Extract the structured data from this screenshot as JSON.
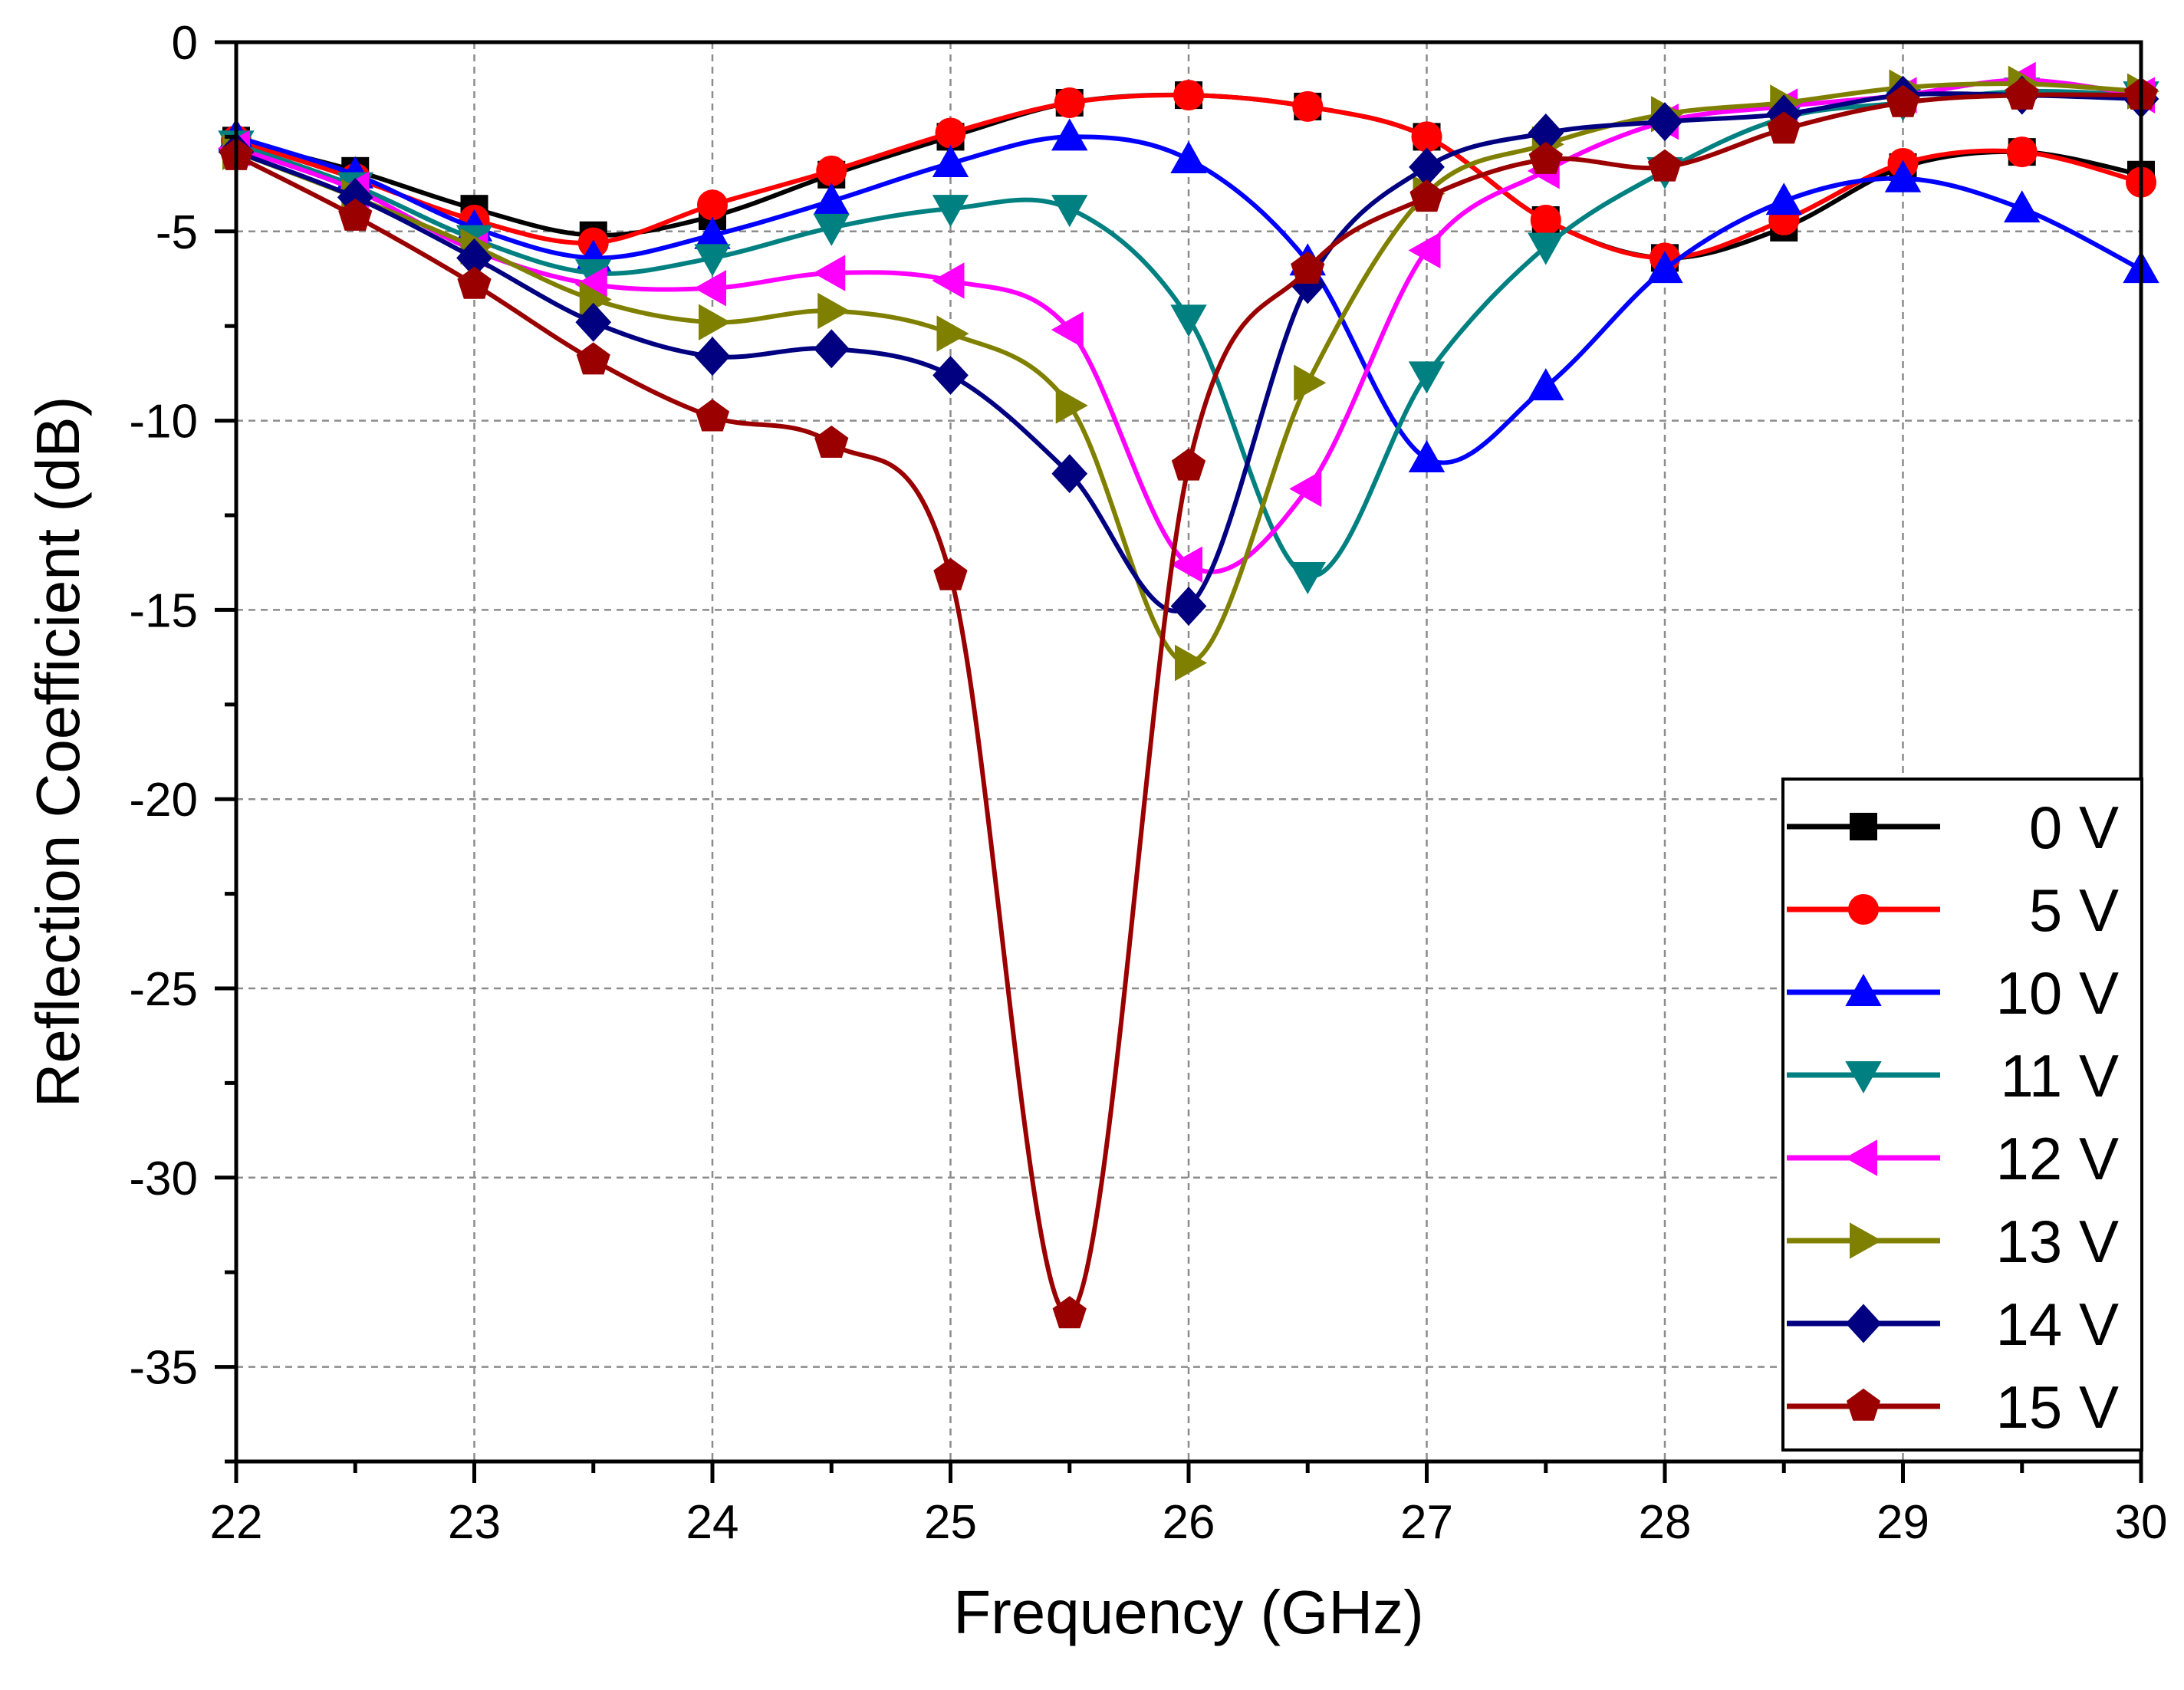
{
  "chart_data": {
    "type": "line",
    "title": "",
    "xlabel": "Frequency (GHz)",
    "ylabel": "Reflection Coefficient (dB)",
    "xlim": [
      22,
      30
    ],
    "ylim": [
      -37.5,
      0
    ],
    "xticks": [
      22,
      23,
      24,
      25,
      26,
      27,
      28,
      29,
      30
    ],
    "yticks": [
      0,
      -5,
      -10,
      -15,
      -20,
      -25,
      -30,
      -35
    ],
    "grid": true,
    "legend_position": "bottom-right",
    "series": [
      {
        "name": "0 V",
        "color": "#000000",
        "marker": "square",
        "x": [
          22,
          22.5,
          23,
          23.5,
          24,
          24.5,
          25,
          25.5,
          26,
          26.5,
          27,
          27.5,
          28,
          28.5,
          29,
          29.5,
          30
        ],
        "y": [
          -2.6,
          -3.4,
          -4.4,
          -5.1,
          -4.6,
          -3.5,
          -2.5,
          -1.6,
          -1.4,
          -1.7,
          -2.5,
          -4.7,
          -5.7,
          -4.9,
          -3.3,
          -2.9,
          -3.5
        ]
      },
      {
        "name": "5 V",
        "color": "#ff0000",
        "marker": "circle",
        "x": [
          22,
          22.5,
          23,
          23.5,
          24,
          24.5,
          25,
          25.5,
          26,
          26.5,
          27,
          27.5,
          28,
          28.5,
          29,
          29.5,
          30
        ],
        "y": [
          -2.6,
          -3.6,
          -4.7,
          -5.3,
          -4.3,
          -3.4,
          -2.4,
          -1.6,
          -1.4,
          -1.7,
          -2.5,
          -4.7,
          -5.7,
          -4.7,
          -3.2,
          -2.9,
          -3.7
        ]
      },
      {
        "name": "10 V",
        "color": "#0000ff",
        "marker": "triangle-up",
        "x": [
          22,
          22.5,
          23,
          23.5,
          24,
          24.5,
          25,
          25.5,
          26,
          26.5,
          27,
          27.5,
          28,
          28.5,
          29,
          29.5,
          30
        ],
        "y": [
          -2.5,
          -3.5,
          -4.9,
          -5.7,
          -5.1,
          -4.2,
          -3.2,
          -2.5,
          -3.1,
          -5.8,
          -11.0,
          -9.1,
          -6.0,
          -4.2,
          -3.6,
          -4.4,
          -6.0
        ]
      },
      {
        "name": "11 V",
        "color": "#008080",
        "marker": "triangle-down",
        "x": [
          22,
          22.5,
          23,
          23.5,
          24,
          24.5,
          25,
          25.5,
          26,
          26.5,
          27,
          27.5,
          28,
          28.5,
          29,
          29.5,
          30
        ],
        "y": [
          -2.7,
          -3.8,
          -5.2,
          -6.1,
          -5.7,
          -4.9,
          -4.4,
          -4.4,
          -7.3,
          -14.1,
          -8.8,
          -5.4,
          -3.4,
          -2.0,
          -1.6,
          -1.3,
          -1.4
        ]
      },
      {
        "name": "12 V",
        "color": "#ff00ff",
        "marker": "triangle-left",
        "x": [
          22,
          22.5,
          23,
          23.5,
          24,
          24.5,
          25,
          25.5,
          26,
          26.5,
          27,
          27.5,
          28,
          28.5,
          29,
          29.5,
          30
        ],
        "y": [
          -2.8,
          -3.9,
          -5.5,
          -6.4,
          -6.5,
          -6.1,
          -6.3,
          -7.6,
          -13.8,
          -11.8,
          -5.5,
          -3.4,
          -2.1,
          -1.7,
          -1.4,
          -1.0,
          -1.4
        ]
      },
      {
        "name": "13 V",
        "color": "#808000",
        "marker": "triangle-right",
        "x": [
          22,
          22.5,
          23,
          23.5,
          24,
          24.5,
          25,
          25.5,
          26,
          26.5,
          27,
          27.5,
          28,
          28.5,
          29,
          29.5,
          30
        ],
        "y": [
          -2.9,
          -4.1,
          -5.4,
          -6.8,
          -7.4,
          -7.1,
          -7.7,
          -9.6,
          -16.4,
          -9.0,
          -4.0,
          -2.7,
          -1.9,
          -1.6,
          -1.2,
          -1.1,
          -1.3
        ]
      },
      {
        "name": "14 V",
        "color": "#000080",
        "marker": "diamond",
        "x": [
          22,
          22.5,
          23,
          23.5,
          24,
          24.5,
          25,
          25.5,
          26,
          26.5,
          27,
          27.5,
          28,
          28.5,
          29,
          29.5,
          30
        ],
        "y": [
          -2.9,
          -4.1,
          -5.7,
          -7.4,
          -8.3,
          -8.1,
          -8.8,
          -11.4,
          -14.9,
          -6.4,
          -3.3,
          -2.4,
          -2.1,
          -1.9,
          -1.4,
          -1.4,
          -1.5
        ]
      },
      {
        "name": "15 V",
        "color": "#9b0000",
        "marker": "pentagon",
        "x": [
          22,
          22.5,
          23,
          23.5,
          24,
          24.5,
          25,
          25.5,
          26,
          26.5,
          27,
          27.5,
          28,
          28.5,
          29,
          29.5,
          30
        ],
        "y": [
          -3.0,
          -4.6,
          -6.4,
          -8.4,
          -9.9,
          -10.6,
          -14.1,
          -33.6,
          -11.2,
          -6.0,
          -4.1,
          -3.1,
          -3.3,
          -2.3,
          -1.6,
          -1.4,
          -1.4
        ]
      }
    ]
  }
}
